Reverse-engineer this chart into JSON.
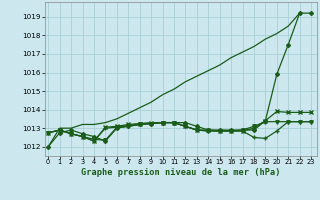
{
  "title": "Graphe pression niveau de la mer (hPa)",
  "background_color": "#cce8ee",
  "grid_color": "#aacfd8",
  "line_color": "#1a5c1a",
  "x_ticks": [
    0,
    1,
    2,
    3,
    4,
    5,
    6,
    7,
    8,
    9,
    10,
    11,
    12,
    13,
    14,
    15,
    16,
    17,
    18,
    19,
    20,
    21,
    22,
    23
  ],
  "y_ticks": [
    1012,
    1013,
    1014,
    1015,
    1016,
    1017,
    1018,
    1019
  ],
  "ylim": [
    1011.5,
    1019.8
  ],
  "xlim": [
    -0.3,
    23.5
  ],
  "diagonal": [
    1012.0,
    1013.0,
    1013.0,
    1013.2,
    1013.2,
    1013.3,
    1013.5,
    1013.8,
    1014.1,
    1014.4,
    1014.8,
    1015.1,
    1015.5,
    1015.8,
    1016.1,
    1016.4,
    1016.8,
    1017.1,
    1017.4,
    1017.8,
    1018.1,
    1018.5,
    1019.2
  ],
  "series_main": [
    1012.0,
    1012.75,
    1012.9,
    1012.7,
    1012.55,
    1012.3,
    1013.0,
    1013.1,
    1013.2,
    1013.25,
    1013.3,
    1013.3,
    1013.3,
    1013.1,
    1012.9,
    1012.9,
    1012.9,
    1012.9,
    1012.9,
    1013.4,
    1015.9,
    1017.5,
    1019.2,
    1019.2
  ],
  "series_flat1": [
    1012.75,
    1012.9,
    1012.7,
    1012.55,
    1012.3,
    1013.0,
    1013.05,
    1013.15,
    1013.2,
    1013.25,
    1013.3,
    1013.3,
    1013.1,
    1012.9,
    1012.85,
    1012.85,
    1012.85,
    1012.85,
    1012.5,
    1012.45,
    1012.85,
    1013.35,
    1013.35,
    1013.35
  ],
  "series_flat2": [
    1012.75,
    1012.9,
    1012.7,
    1012.55,
    1012.3,
    1013.05,
    1013.1,
    1013.2,
    1013.25,
    1013.3,
    1013.3,
    1013.3,
    1013.1,
    1012.9,
    1012.9,
    1012.85,
    1012.85,
    1012.85,
    1013.0,
    1013.4,
    1013.9,
    1013.85,
    1013.85,
    1013.85
  ],
  "series_flat3": [
    1012.75,
    1012.9,
    1012.7,
    1012.55,
    1012.4,
    1012.35,
    1013.05,
    1013.1,
    1013.2,
    1013.25,
    1013.3,
    1013.3,
    1013.1,
    1012.9,
    1012.85,
    1012.85,
    1012.85,
    1012.9,
    1013.1,
    1013.35,
    1013.35,
    1013.35,
    1013.35,
    1013.35
  ]
}
